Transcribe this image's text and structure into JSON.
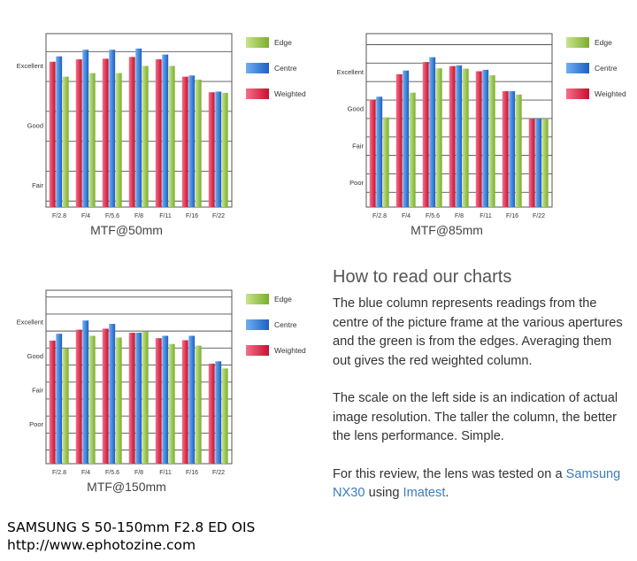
{
  "legend": {
    "edge": "Edge",
    "centre": "Centre",
    "weighted": "Weighted"
  },
  "colors": {
    "edge": "#8cbf3f",
    "centre": "#2f78d8",
    "weighted": "#d8243f"
  },
  "rating_labels": [
    "Excellent",
    "Good",
    "Fair",
    "Poor"
  ],
  "chart_data": [
    {
      "type": "bar",
      "title": "MTF@50mm",
      "categories": [
        "F/2.8",
        "F/4",
        "F/5.6",
        "F/8",
        "F/11",
        "F/16",
        "F/22"
      ],
      "series": [
        {
          "name": "Weighted",
          "values": [
            0.83,
            0.87,
            0.88,
            0.91,
            0.87,
            0.58,
            0.32
          ]
        },
        {
          "name": "Centre",
          "values": [
            0.92,
            1.03,
            1.03,
            1.05,
            0.95,
            0.6,
            0.33
          ]
        },
        {
          "name": "Edge",
          "values": [
            0.58,
            0.64,
            0.64,
            0.76,
            0.76,
            0.53,
            0.31
          ]
        }
      ],
      "ylim": [
        -1.6,
        1.3
      ]
    },
    {
      "type": "bar",
      "title": "MTF@85mm",
      "categories": [
        "F/2.8",
        "F/4",
        "F/5.6",
        "F/8",
        "F/11",
        "F/16",
        "F/22"
      ],
      "series": [
        {
          "name": "Weighted",
          "values": [
            0.01,
            0.7,
            1.03,
            0.92,
            0.78,
            0.24,
            -0.51
          ]
        },
        {
          "name": "Centre",
          "values": [
            0.09,
            0.8,
            1.16,
            0.94,
            0.82,
            0.24,
            -0.51
          ]
        },
        {
          "name": "Edge",
          "values": [
            -0.47,
            0.2,
            0.86,
            0.85,
            0.67,
            0.15,
            -0.52
          ]
        }
      ],
      "ylim": [
        -2.9,
        1.8
      ]
    },
    {
      "type": "bar",
      "title": "MTF@150mm",
      "categories": [
        "F/2.8",
        "F/4",
        "F/5.6",
        "F/8",
        "F/11",
        "F/16",
        "F/22"
      ],
      "series": [
        {
          "name": "Weighted",
          "values": [
            0.22,
            0.54,
            0.57,
            0.45,
            0.29,
            0.23,
            -0.46
          ]
        },
        {
          "name": "Centre",
          "values": [
            0.42,
            0.81,
            0.71,
            0.45,
            0.36,
            0.36,
            -0.39
          ]
        },
        {
          "name": "Edge",
          "values": [
            -0.01,
            0.36,
            0.31,
            0.48,
            0.12,
            0.07,
            -0.6
          ]
        }
      ],
      "ylim": [
        -3.4,
        1.7
      ]
    }
  ],
  "howto": {
    "heading": "How to read our charts",
    "para1": "The blue column represents readings from the centre of the picture frame at the various apertures and the green is from the edges. Averaging them out gives the red weighted column.",
    "para2": "The scale on the left side is an indication of actual image resolution. The taller the column, the better the lens performance. Simple.",
    "para3_prefix": "For this review, the lens was tested on a",
    "camera_link": "Samsung NX30",
    "para3_mid": "using",
    "imatest_link": "Imatest",
    "para3_suffix": "."
  },
  "caption": {
    "lens": "SAMSUNG S 50-150mm F2.8 ED OIS",
    "url": "http://www.ephotozine.com"
  }
}
